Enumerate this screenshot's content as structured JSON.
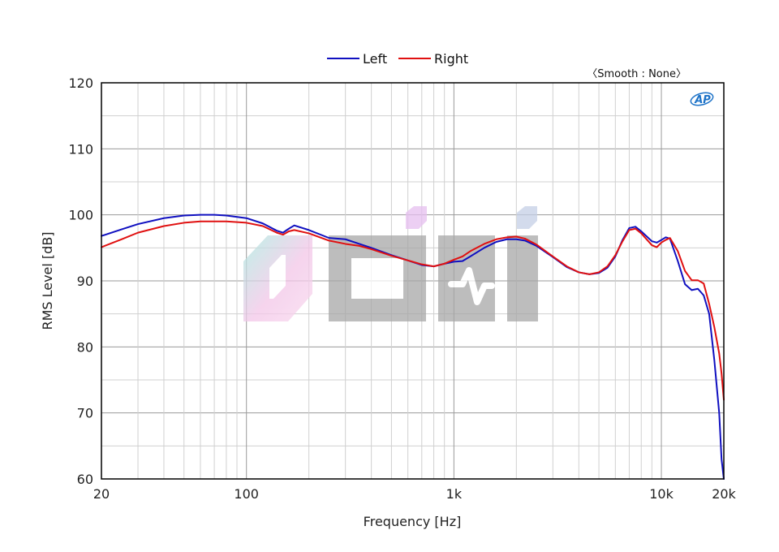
{
  "chart_data": {
    "type": "line",
    "title": "",
    "xlabel": "Frequency [Hz]",
    "ylabel": "RMS Level [dB]",
    "xscale": "log",
    "xlim": [
      20,
      20000
    ],
    "ylim": [
      60,
      120
    ],
    "xticks": [
      {
        "value": 20,
        "label": "20"
      },
      {
        "value": 100,
        "label": "100"
      },
      {
        "value": 1000,
        "label": "1k"
      },
      {
        "value": 10000,
        "label": "10k"
      },
      {
        "value": 20000,
        "label": "20k"
      }
    ],
    "yticks": [
      60,
      70,
      80,
      90,
      100,
      110,
      120
    ],
    "grid": true,
    "legend_position": "top-center",
    "annotation": "〈Smooth : None〉",
    "logo": "AP",
    "series": [
      {
        "name": "Left",
        "color": "#1010c0",
        "points": [
          [
            20,
            96.8
          ],
          [
            25,
            97.8
          ],
          [
            30,
            98.6
          ],
          [
            40,
            99.5
          ],
          [
            50,
            99.9
          ],
          [
            60,
            100.0
          ],
          [
            70,
            100.0
          ],
          [
            80,
            99.9
          ],
          [
            100,
            99.5
          ],
          [
            120,
            98.7
          ],
          [
            140,
            97.6
          ],
          [
            150,
            97.3
          ],
          [
            160,
            97.9
          ],
          [
            170,
            98.4
          ],
          [
            200,
            97.7
          ],
          [
            250,
            96.5
          ],
          [
            300,
            96.3
          ],
          [
            350,
            95.6
          ],
          [
            400,
            95.0
          ],
          [
            500,
            93.9
          ],
          [
            600,
            93.1
          ],
          [
            700,
            92.4
          ],
          [
            800,
            92.2
          ],
          [
            900,
            92.6
          ],
          [
            1000,
            92.9
          ],
          [
            1100,
            93.0
          ],
          [
            1200,
            93.7
          ],
          [
            1400,
            95.0
          ],
          [
            1600,
            95.9
          ],
          [
            1800,
            96.3
          ],
          [
            2000,
            96.3
          ],
          [
            2200,
            96.1
          ],
          [
            2500,
            95.3
          ],
          [
            3000,
            93.6
          ],
          [
            3500,
            92.1
          ],
          [
            4000,
            91.3
          ],
          [
            4500,
            91.0
          ],
          [
            5000,
            91.2
          ],
          [
            5500,
            92.0
          ],
          [
            6000,
            93.7
          ],
          [
            6500,
            96.2
          ],
          [
            7000,
            98.0
          ],
          [
            7500,
            98.2
          ],
          [
            8000,
            97.5
          ],
          [
            9000,
            96.0
          ],
          [
            9500,
            95.8
          ],
          [
            10000,
            96.2
          ],
          [
            10500,
            96.6
          ],
          [
            11000,
            96.4
          ],
          [
            12000,
            93.0
          ],
          [
            13000,
            89.5
          ],
          [
            14000,
            88.6
          ],
          [
            15000,
            88.8
          ],
          [
            16000,
            87.8
          ],
          [
            17000,
            85.0
          ],
          [
            18000,
            78.0
          ],
          [
            19000,
            70.0
          ],
          [
            19500,
            63.0
          ],
          [
            20000,
            60.0
          ]
        ]
      },
      {
        "name": "Right",
        "color": "#e01010",
        "points": [
          [
            20,
            95.1
          ],
          [
            25,
            96.3
          ],
          [
            30,
            97.3
          ],
          [
            40,
            98.3
          ],
          [
            50,
            98.8
          ],
          [
            60,
            99.0
          ],
          [
            70,
            99.0
          ],
          [
            80,
            99.0
          ],
          [
            100,
            98.8
          ],
          [
            120,
            98.3
          ],
          [
            140,
            97.3
          ],
          [
            150,
            97.0
          ],
          [
            160,
            97.5
          ],
          [
            170,
            97.7
          ],
          [
            200,
            97.2
          ],
          [
            250,
            96.1
          ],
          [
            300,
            95.6
          ],
          [
            350,
            95.3
          ],
          [
            400,
            94.8
          ],
          [
            500,
            93.8
          ],
          [
            600,
            93.1
          ],
          [
            700,
            92.5
          ],
          [
            800,
            92.2
          ],
          [
            900,
            92.6
          ],
          [
            1000,
            93.2
          ],
          [
            1100,
            93.7
          ],
          [
            1200,
            94.5
          ],
          [
            1400,
            95.6
          ],
          [
            1600,
            96.3
          ],
          [
            1800,
            96.6
          ],
          [
            2000,
            96.7
          ],
          [
            2200,
            96.4
          ],
          [
            2500,
            95.5
          ],
          [
            3000,
            93.7
          ],
          [
            3500,
            92.2
          ],
          [
            4000,
            91.3
          ],
          [
            4500,
            91.0
          ],
          [
            5000,
            91.3
          ],
          [
            5500,
            92.2
          ],
          [
            6000,
            93.9
          ],
          [
            6500,
            96.0
          ],
          [
            7000,
            97.7
          ],
          [
            7500,
            97.9
          ],
          [
            8000,
            97.2
          ],
          [
            9000,
            95.4
          ],
          [
            9500,
            95.1
          ],
          [
            10000,
            95.8
          ],
          [
            10500,
            96.2
          ],
          [
            11000,
            96.5
          ],
          [
            12000,
            94.5
          ],
          [
            13000,
            91.5
          ],
          [
            14000,
            90.1
          ],
          [
            15000,
            90.1
          ],
          [
            16000,
            89.6
          ],
          [
            17000,
            86.5
          ],
          [
            18000,
            83.0
          ],
          [
            19000,
            79.0
          ],
          [
            19500,
            76.0
          ],
          [
            20000,
            72.0
          ]
        ]
      }
    ]
  }
}
